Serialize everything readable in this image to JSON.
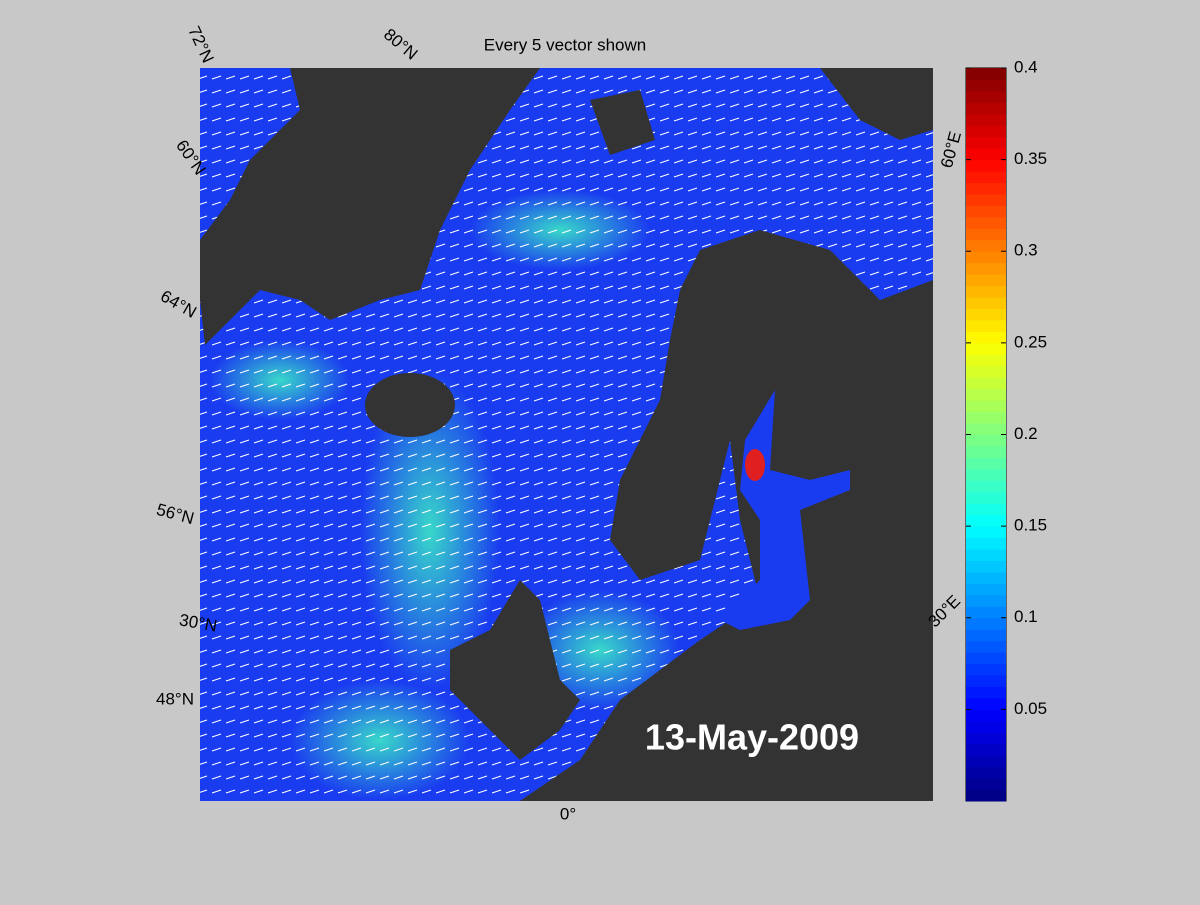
{
  "title": "Every 5 vector shown",
  "date_label": "13-May-2009",
  "graticule_labels": [
    "72°N",
    "80°N",
    "60°N",
    "64°N",
    "56°N",
    "30°N",
    "48°N",
    "60°E",
    "30°E",
    "0°"
  ],
  "colorbar": {
    "lim": [
      0,
      0.4
    ],
    "ticks": [
      0.05,
      0.1,
      0.15,
      0.2,
      0.25,
      0.3,
      0.35,
      0.4
    ]
  }
}
